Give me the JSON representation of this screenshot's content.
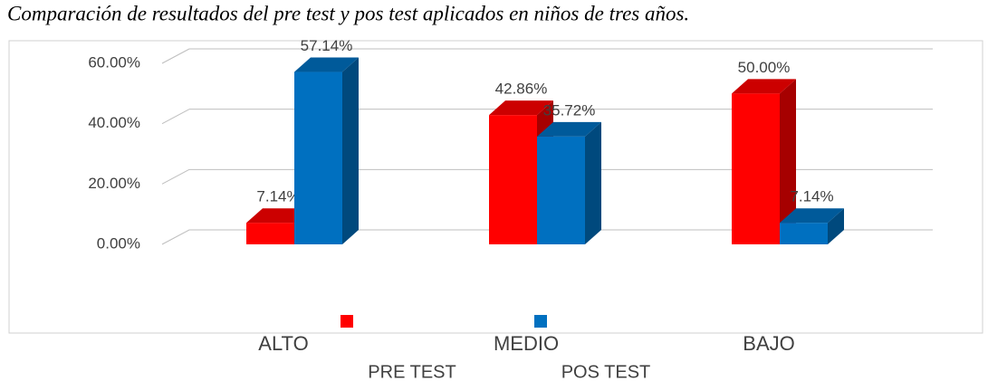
{
  "chart_data": {
    "type": "bar3d",
    "title": "Comparación de resultados del pre test y pos test aplicados en niños de tres años.",
    "categories": [
      "ALTO",
      "MEDIO",
      "BAJO"
    ],
    "series": [
      {
        "name": "PRE TEST",
        "color": "#ff0000",
        "values": [
          7.14,
          42.86,
          50.0
        ],
        "value_labels": [
          "7.14%",
          "42.86%",
          "50.00%"
        ]
      },
      {
        "name": "POS TEST",
        "color": "#0070c0",
        "values": [
          57.14,
          35.72,
          7.14
        ],
        "value_labels": [
          "57.14%",
          "35.72%",
          "7.14%"
        ]
      }
    ],
    "ylim": [
      0,
      60
    ],
    "yticks": [
      {
        "value": 0,
        "label": "0.00%"
      },
      {
        "value": 20,
        "label": "20.00%"
      },
      {
        "value": 40,
        "label": "40.00%"
      },
      {
        "value": 60,
        "label": "60.00%"
      }
    ],
    "grid": true
  }
}
